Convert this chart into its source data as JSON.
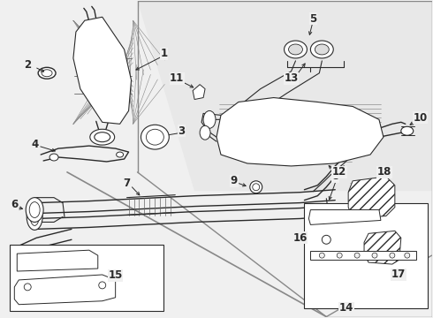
{
  "bg": "#f0f0f0",
  "lc": "#2a2a2a",
  "panel_bg": "#e8e8e8",
  "white": "#ffffff",
  "fig_w": 4.9,
  "fig_h": 3.6,
  "dpi": 100
}
